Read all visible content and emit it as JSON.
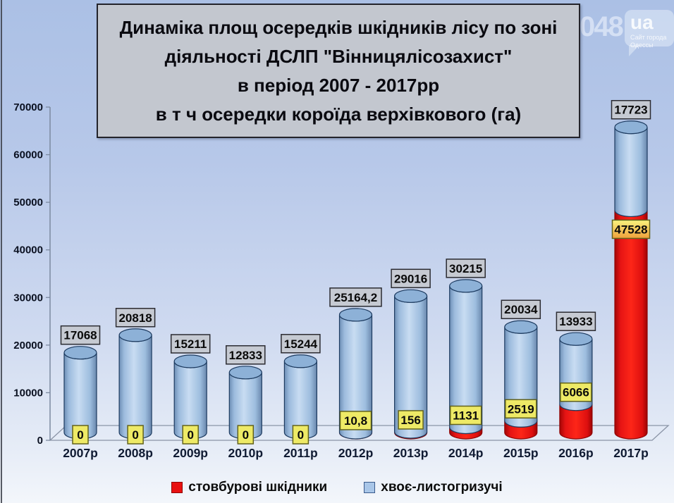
{
  "title": {
    "lines": [
      "Динаміка площ осередків шкідників лісу по зоні",
      "діяльності ДСЛП \"Вінницялісозахист\"",
      "в період 2007 - 2017рр",
      "в т ч осередки короїда верхівкового (га)"
    ]
  },
  "watermark": {
    "number": "048",
    "domain": "ua",
    "tagline_line1": "Сайт города",
    "tagline_line2": "Одессы"
  },
  "chart_data": {
    "type": "bar",
    "subtype": "stacked-3d-cylinder",
    "title": "Динаміка площ осередків шкідників лісу по зоні діяльності ДСЛП \"Вінницялісозахист\" в період 2007 - 2017рр в т ч осередки короїда верхівкового (га)",
    "categories": [
      "2007р",
      "2008р",
      "2009р",
      "2010р",
      "2011р",
      "2012р",
      "2013р",
      "2014р",
      "2015р",
      "2016р",
      "2017р"
    ],
    "series": [
      {
        "name": "стовбурові шкідники",
        "color": "#e81111",
        "values": [
          0,
          0,
          0,
          0,
          0,
          10.8,
          156,
          1131,
          2519,
          6066,
          47528
        ],
        "labels": [
          "0",
          "0",
          "0",
          "0",
          "0",
          "10,8",
          "156",
          "1131",
          "2519",
          "6066",
          "47528"
        ],
        "label_box_color": "#eeea66",
        "label_box_color_large": [
          "#f9f47e",
          "#f0a03a"
        ]
      },
      {
        "name": "хвоє-листогризучі",
        "color": "#a9c6e8",
        "values": [
          17068,
          20818,
          15211,
          12833,
          15244,
          25164.2,
          29016,
          30215,
          20034,
          13933,
          17723
        ],
        "labels": [
          "17068",
          "20818",
          "15211",
          "12833",
          "15244",
          "25164,2",
          "29016",
          "30215",
          "20034",
          "13933",
          "17723"
        ],
        "label_box_color": "#c6cad2"
      }
    ],
    "axis": {
      "min": 0,
      "max": 70000,
      "step": 10000
    },
    "ylabel": "",
    "xlabel": "",
    "grid": false,
    "legend_position": "bottom"
  },
  "legend": {
    "items": [
      {
        "label": "стовбурові шкідники",
        "color": "#e81111",
        "border": "#8e0505"
      },
      {
        "label": "хвоє-листогризучі",
        "color": "#a9c6e8",
        "border": "#3a5a8c"
      }
    ]
  }
}
